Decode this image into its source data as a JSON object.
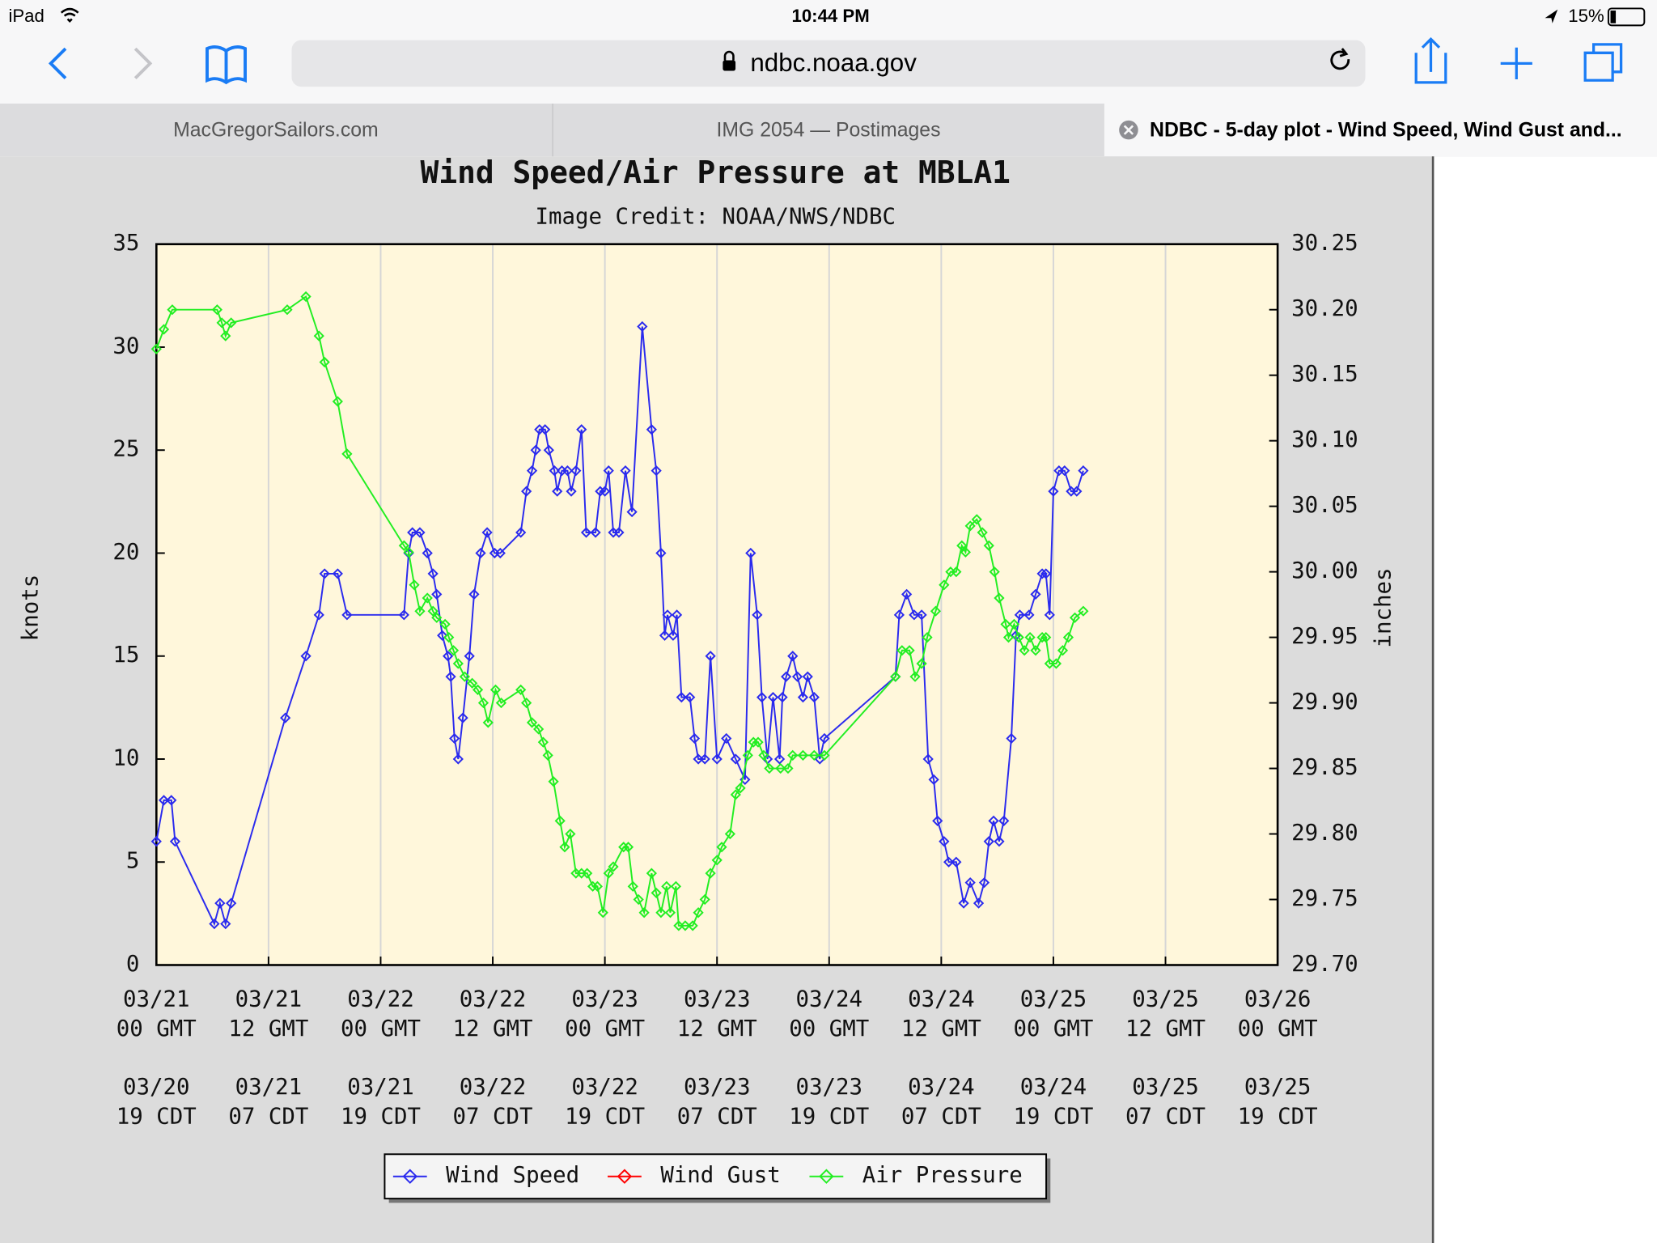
{
  "status_bar": {
    "device": "iPad",
    "time": "10:44 PM",
    "battery": "15%"
  },
  "toolbar": {
    "url": "ndbc.noaa.gov"
  },
  "tabs": [
    "MacGregorSailors.com",
    "IMG 2054 — Postimages",
    "NDBC - 5-day plot - Wind Speed, Wind Gust and..."
  ],
  "chart_data": {
    "type": "line",
    "title": "Wind Speed/Air Pressure at MBLA1",
    "subtitle": "Image Credit: NOAA/NWS/NDBC",
    "y_label": "knots",
    "y2_label": "inches",
    "xlim": [
      0,
      120
    ],
    "xticks": [
      {
        "value": 0,
        "label": "03/21 00 GMT"
      },
      {
        "value": 12,
        "label": "03/21 12 GMT"
      },
      {
        "value": 24,
        "label": "03/22 00 GMT"
      },
      {
        "value": 36,
        "label": "03/22 12 GMT"
      },
      {
        "value": 48,
        "label": "03/23 00 GMT"
      },
      {
        "value": 60,
        "label": "03/23 12 GMT"
      },
      {
        "value": 72,
        "label": "03/24 00 GMT"
      },
      {
        "value": 84,
        "label": "03/24 12 GMT"
      },
      {
        "value": 96,
        "label": "03/25 00 GMT"
      },
      {
        "value": 108,
        "label": "03/25 12 GMT"
      },
      {
        "value": 120,
        "label": "03/26 00 GMT"
      }
    ],
    "xticks_local": [
      {
        "value": 0,
        "label": "03/20 19 CDT"
      },
      {
        "value": 12,
        "label": "03/21 07 CDT"
      },
      {
        "value": 24,
        "label": "03/21 19 CDT"
      },
      {
        "value": 36,
        "label": "03/22 07 CDT"
      },
      {
        "value": 48,
        "label": "03/22 19 CDT"
      },
      {
        "value": 60,
        "label": "03/23 07 CDT"
      },
      {
        "value": 72,
        "label": "03/23 19 CDT"
      },
      {
        "value": 84,
        "label": "03/24 07 CDT"
      },
      {
        "value": 96,
        "label": "03/24 19 CDT"
      },
      {
        "value": 108,
        "label": "03/25 07 CDT"
      },
      {
        "value": 120,
        "label": "03/25 19 CDT"
      }
    ],
    "ylim": [
      0,
      35
    ],
    "yticks": [
      0,
      5,
      10,
      15,
      20,
      25,
      30,
      35
    ],
    "y2lim": [
      29.7,
      30.25
    ],
    "y2ticks": [
      {
        "value": 29.7,
        "label": "29.70"
      },
      29.75,
      {
        "value": 29.8,
        "label": "29.80"
      },
      29.85,
      {
        "value": 29.9,
        "label": "29.90"
      },
      29.95,
      {
        "value": 30.0,
        "label": "30.00"
      },
      30.05,
      {
        "value": 30.1,
        "label": "30.10"
      },
      30.15,
      {
        "value": 30.2,
        "label": "30.20"
      },
      30.25
    ],
    "grid": "x",
    "legend": "bottom",
    "series": [
      {
        "name": "Wind Speed",
        "color": "#2a2aee",
        "x": [
          0,
          0.8,
          1.6,
          2,
          6.2,
          6.8,
          7.4,
          8,
          13.8,
          16,
          17.4,
          18,
          19.4,
          20.4,
          26.5,
          27,
          27.4,
          28.2,
          29,
          29.6,
          30,
          30.6,
          31.2,
          31.5,
          31.9,
          32.3,
          32.8,
          33.5,
          34,
          34.7,
          35.4,
          36.2,
          36.8,
          39,
          39.6,
          40.2,
          40.6,
          41,
          41.6,
          42,
          42.6,
          42.9,
          43.4,
          44,
          44.4,
          44.9,
          45.5,
          46,
          47,
          47.5,
          48,
          48.4,
          48.9,
          49.5,
          50.2,
          50.9,
          52,
          53,
          53.5,
          54,
          54.4,
          54.7,
          55.3,
          55.7,
          56.2,
          57.1,
          57.6,
          58,
          58.7,
          59.3,
          60,
          61,
          62,
          63,
          63.6,
          64.3,
          64.8,
          65.4,
          66,
          66.7,
          67,
          67.4,
          68.1,
          68.6,
          69.2,
          69.7,
          70.4,
          71,
          71.5,
          79.1,
          79.5,
          80.3,
          81.1,
          81.9,
          82.6,
          83.2,
          83.6,
          84.3,
          84.8,
          85.6,
          86.4,
          87.1,
          88,
          88.6,
          89.1,
          89.6,
          90.2,
          90.7,
          91.5,
          92,
          92.4,
          93.4,
          94.1,
          94.8,
          95.2,
          95.6,
          96,
          96.6,
          97.2,
          97.9,
          98.5,
          99.2
        ],
        "values": [
          6,
          8,
          8,
          6,
          2,
          3,
          2,
          3,
          12,
          15,
          17,
          19,
          19,
          17,
          17,
          20,
          21,
          21,
          20,
          19,
          18,
          16,
          15,
          14,
          11,
          10,
          12,
          15,
          18,
          20,
          21,
          20,
          20,
          21,
          23,
          24,
          25,
          26,
          26,
          25,
          24,
          23,
          24,
          24,
          23,
          24,
          26,
          21,
          21,
          23,
          23,
          24,
          21,
          21,
          24,
          22,
          31,
          26,
          24,
          20,
          16,
          17,
          16,
          17,
          13,
          13,
          11,
          10,
          10,
          15,
          10,
          11,
          10,
          9,
          20,
          17,
          13,
          10,
          13,
          10,
          13,
          14,
          15,
          14,
          13,
          14,
          13,
          10,
          11,
          14,
          17,
          18,
          17,
          17,
          10,
          9,
          7,
          6,
          5,
          5,
          3,
          4,
          3,
          4,
          6,
          7,
          6,
          7,
          11,
          16,
          17,
          17,
          18,
          19,
          19,
          17,
          23,
          24,
          24,
          23,
          23,
          24
        ]
      },
      {
        "name": "Wind Gust",
        "color": "#ff0000",
        "x": [],
        "values": []
      },
      {
        "name": "Air Pressure",
        "color": "#22ee22",
        "axis": "y2",
        "x": [
          0,
          0.8,
          1.7,
          6.5,
          7,
          7.4,
          8,
          14,
          16,
          17.4,
          18,
          19.4,
          20.4,
          26.5,
          27,
          27.6,
          28.2,
          29,
          29.6,
          30,
          30.9,
          31.3,
          31.8,
          32.3,
          33,
          33.8,
          34.4,
          35,
          35.5,
          36.3,
          36.9,
          39,
          39.6,
          40.2,
          40.9,
          41.4,
          41.9,
          42.5,
          43.2,
          43.7,
          44.3,
          44.9,
          45.5,
          46.1,
          46.7,
          47.2,
          47.8,
          48.4,
          48.9,
          50,
          50.5,
          51,
          51.6,
          52.2,
          53,
          53.5,
          54,
          54.6,
          55,
          55.6,
          55.9,
          56.6,
          57.4,
          58,
          58.7,
          59.3,
          60,
          60.5,
          61.4,
          62,
          62.5,
          63.3,
          63.9,
          64.4,
          65,
          65.6,
          66.8,
          67.6,
          68.1,
          69.2,
          70.4,
          71.5,
          79.1,
          79.8,
          80.6,
          81.2,
          81.9,
          82.5,
          83.4,
          84.3,
          85,
          85.6,
          86.2,
          86.6,
          87.1,
          87.8,
          88.4,
          89.1,
          89.7,
          90.2,
          90.9,
          91.2,
          91.8,
          92.3,
          92.9,
          93.5,
          94.1,
          94.8,
          95.2,
          95.6,
          96.3,
          97,
          97.6,
          98.3,
          99.2
        ],
        "values": [
          30.17,
          30.185,
          30.2,
          30.2,
          30.19,
          30.18,
          30.19,
          30.2,
          30.21,
          30.18,
          30.16,
          30.13,
          30.09,
          30.02,
          30.015,
          29.99,
          29.97,
          29.98,
          29.97,
          29.965,
          29.96,
          29.95,
          29.94,
          29.93,
          29.92,
          29.915,
          29.91,
          29.9,
          29.885,
          29.91,
          29.9,
          29.91,
          29.9,
          29.885,
          29.88,
          29.87,
          29.86,
          29.84,
          29.81,
          29.79,
          29.8,
          29.77,
          29.77,
          29.77,
          29.76,
          29.76,
          29.74,
          29.77,
          29.775,
          29.79,
          29.79,
          29.76,
          29.75,
          29.74,
          29.77,
          29.755,
          29.74,
          29.76,
          29.74,
          29.76,
          29.73,
          29.73,
          29.73,
          29.74,
          29.75,
          29.77,
          29.78,
          29.79,
          29.8,
          29.83,
          29.835,
          29.86,
          29.87,
          29.87,
          29.86,
          29.85,
          29.85,
          29.85,
          29.86,
          29.86,
          29.86,
          29.86,
          29.92,
          29.94,
          29.94,
          29.92,
          29.93,
          29.95,
          29.97,
          29.99,
          30,
          30,
          30.02,
          30.015,
          30.035,
          30.04,
          30.03,
          30.02,
          30,
          29.98,
          29.96,
          29.95,
          29.96,
          29.95,
          29.94,
          29.95,
          29.94,
          29.95,
          29.95,
          29.93,
          29.93,
          29.94,
          29.95,
          29.965,
          29.97
        ]
      }
    ]
  }
}
